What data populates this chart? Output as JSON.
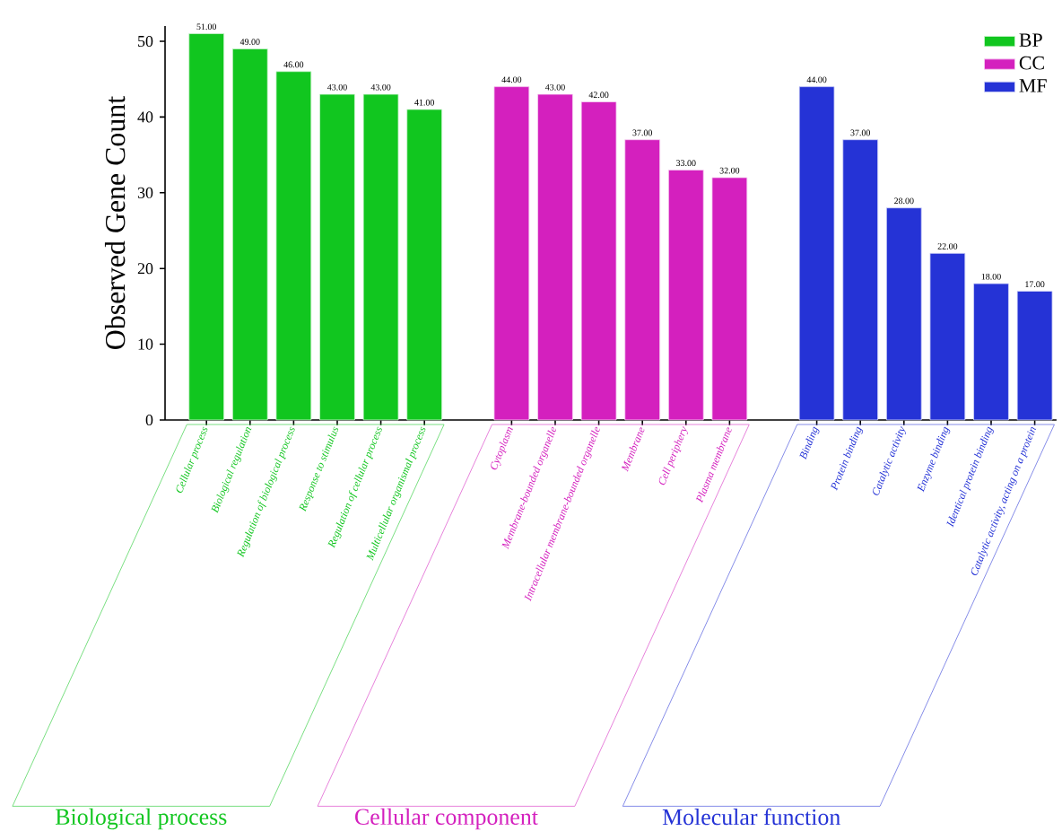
{
  "chart_data": {
    "type": "bar",
    "ylabel": "Observed Gene Count",
    "categories": [
      "Cellular process",
      "Biological regulation",
      "Regulation of biological process",
      "Response to stimulus",
      "Regulation of cellular process",
      "Multicellular organismal process",
      null,
      "Cytoplasm",
      "Membrane-bounded organelle",
      "Intracellular membrane-bounded organelle",
      "Membrane",
      "Cell periphery",
      "Plasma membrane",
      null,
      "Binding",
      "Protein binding",
      "Catalytic activity",
      "Enzyme binding",
      "Identical protein binding",
      "Catalytic activity, acting on a protein"
    ],
    "series": [
      {
        "name": "BP",
        "color": "#11c61f",
        "values": [
          51,
          49,
          46,
          43,
          43,
          41,
          null,
          null,
          null,
          null,
          null,
          null,
          null,
          null,
          null,
          null,
          null,
          null,
          null,
          null
        ],
        "value_labels": [
          "51.00",
          "49.00",
          "46.00",
          "43.00",
          "43.00",
          "41.00",
          null,
          null,
          null,
          null,
          null,
          null,
          null,
          null,
          null,
          null,
          null,
          null,
          null,
          null
        ]
      },
      {
        "name": "CC",
        "color": "#d420be",
        "values": [
          null,
          null,
          null,
          null,
          null,
          null,
          null,
          44,
          43,
          42,
          37,
          33,
          32,
          null,
          null,
          null,
          null,
          null,
          null,
          null
        ],
        "value_labels": [
          null,
          null,
          null,
          null,
          null,
          null,
          null,
          "44.00",
          "43.00",
          "42.00",
          "37.00",
          "33.00",
          "32.00",
          null,
          null,
          null,
          null,
          null,
          null,
          null
        ]
      },
      {
        "name": "MF",
        "color": "#2533d6",
        "values": [
          null,
          null,
          null,
          null,
          null,
          null,
          null,
          null,
          null,
          null,
          null,
          null,
          null,
          null,
          44,
          37,
          28,
          22,
          18,
          17
        ],
        "value_labels": [
          null,
          null,
          null,
          null,
          null,
          null,
          null,
          null,
          null,
          null,
          null,
          null,
          null,
          null,
          "44.00",
          "37.00",
          "28.00",
          "22.00",
          "18.00",
          "17.00"
        ]
      }
    ],
    "ylim": [
      0,
      52
    ],
    "yticks": [
      0,
      10,
      20,
      30,
      40,
      50
    ],
    "legend": "top right",
    "grid": false,
    "annotations": [
      "Biological process",
      "Cellular component",
      "Molecular function"
    ]
  }
}
